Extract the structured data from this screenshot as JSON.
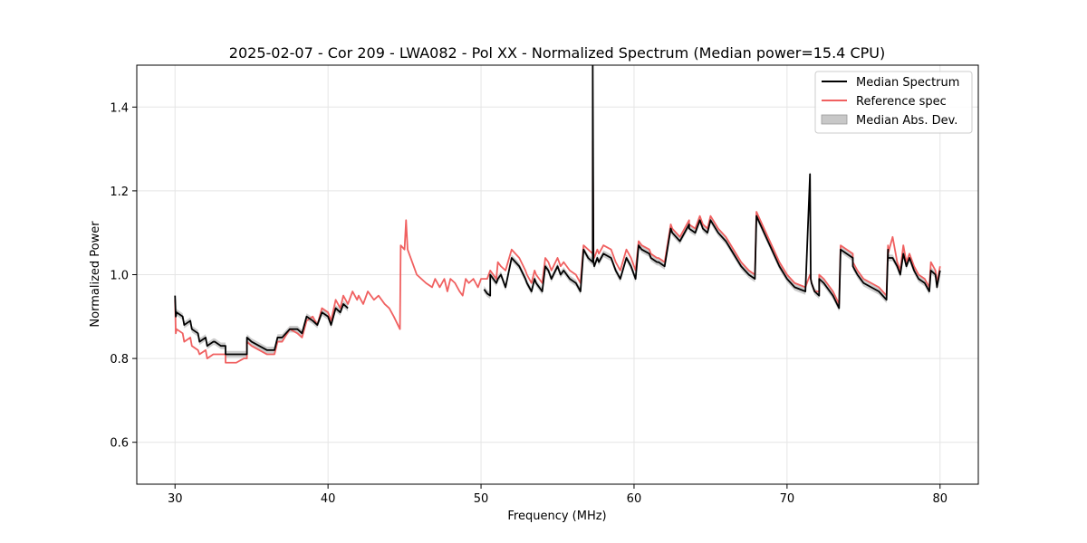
{
  "chart_data": {
    "type": "line",
    "title": "2025-02-07 - Cor 209 - LWA082 - Pol XX - Normalized Spectrum (Median power=15.4 CPU)",
    "xlabel": "Frequency (MHz)",
    "ylabel": "Normalized Power",
    "xlim": [
      27.5,
      82.5
    ],
    "ylim": [
      0.5,
      1.5
    ],
    "xticks": [
      30,
      40,
      50,
      60,
      70,
      80
    ],
    "yticks": [
      0.6,
      0.8,
      1.0,
      1.2,
      1.4
    ],
    "xtick_labels": [
      "30",
      "40",
      "50",
      "60",
      "70",
      "80"
    ],
    "ytick_labels": [
      "0.6",
      "0.8",
      "1.0",
      "1.2",
      "1.4"
    ],
    "grid": true,
    "legend_position": "top-right",
    "colors": {
      "median": "#000000",
      "reference": "#f06060",
      "mad": "#c8c8c8"
    },
    "legend": [
      {
        "label": "Median Spectrum",
        "style": "line",
        "color": "#000000"
      },
      {
        "label": "Reference spec",
        "style": "line",
        "color": "#f06060"
      },
      {
        "label": "Median Abs. Dev.",
        "style": "patch",
        "color": "#c8c8c8"
      }
    ],
    "series": [
      {
        "name": "Median Spectrum",
        "mad": 0.008,
        "segments": [
          {
            "x": [
              30.0,
              30.05,
              30.1,
              30.5,
              30.6,
              31.0,
              31.1,
              31.5,
              31.6,
              32.0,
              32.1,
              32.5,
              32.6,
              33.0,
              33.3,
              33.3,
              33.6,
              34.0,
              34.5,
              34.7,
              34.7,
              35.0,
              35.5,
              36.0,
              36.5,
              36.7,
              37.0,
              37.5,
              38.0,
              38.3,
              38.6,
              39.0,
              39.3,
              39.6,
              40.0,
              40.2,
              40.5,
              40.8,
              41.0,
              41.3
            ],
            "y": [
              0.95,
              0.9,
              0.91,
              0.9,
              0.88,
              0.89,
              0.87,
              0.86,
              0.84,
              0.85,
              0.83,
              0.84,
              0.84,
              0.83,
              0.83,
              0.81,
              0.81,
              0.81,
              0.81,
              0.81,
              0.85,
              0.84,
              0.83,
              0.82,
              0.82,
              0.85,
              0.85,
              0.87,
              0.87,
              0.86,
              0.9,
              0.89,
              0.88,
              0.91,
              0.9,
              0.88,
              0.92,
              0.91,
              0.93,
              0.92
            ]
          },
          {
            "x": [
              50.2,
              50.4,
              50.4,
              50.6,
              50.6,
              51.0,
              51.1,
              51.3,
              51.6,
              52.0,
              52.5,
              52.9,
              53.0,
              53.3,
              53.5,
              53.6,
              54.0,
              54.2,
              54.4,
              54.6,
              55.0,
              55.2,
              55.4,
              55.8,
              56.2,
              56.5,
              56.7,
              57.0,
              57.3,
              57.3,
              57.35,
              57.4,
              57.6,
              57.7,
              58.0,
              58.5,
              58.8,
              59.1,
              59.5,
              59.8,
              60.1,
              60.3,
              60.5,
              61.0,
              61.1,
              61.5,
              61.6,
              62.0,
              62.4,
              62.5,
              63.0,
              63.6,
              63.6,
              64.0,
              64.3,
              64.5,
              64.8,
              65.0,
              65.5,
              66.0,
              66.5,
              67.0,
              67.5,
              67.9,
              68.0,
              68.5,
              69.0,
              69.5,
              70.0,
              70.5,
              71.2,
              71.5,
              71.55,
              71.6,
              71.7,
              71.8,
              72.1,
              72.1,
              72.4,
              72.8,
              73.0,
              73.4,
              73.5,
              74.3,
              74.3,
              74.6,
              75.0,
              75.5,
              76.0,
              76.5,
              76.6,
              76.6,
              76.9,
              77.2,
              77.4,
              77.6,
              77.8,
              78.0,
              78.3,
              78.6,
              79.0,
              79.3,
              79.4,
              79.7,
              79.8,
              80.0
            ],
            "y": [
              0.965,
              0.955,
              0.955,
              0.95,
              1.0,
              0.98,
              0.99,
              1.0,
              0.97,
              1.04,
              1.02,
              0.99,
              0.98,
              0.96,
              0.99,
              0.98,
              0.96,
              1.02,
              1.01,
              0.99,
              1.02,
              1.0,
              1.01,
              0.99,
              0.98,
              0.96,
              1.06,
              1.04,
              1.03,
              1.5,
              1.03,
              1.02,
              1.04,
              1.03,
              1.05,
              1.04,
              1.01,
              0.99,
              1.04,
              1.02,
              0.99,
              1.07,
              1.06,
              1.05,
              1.04,
              1.03,
              1.03,
              1.02,
              1.11,
              1.1,
              1.08,
              1.12,
              1.11,
              1.1,
              1.13,
              1.11,
              1.1,
              1.13,
              1.1,
              1.08,
              1.05,
              1.02,
              1.0,
              0.99,
              1.14,
              1.1,
              1.06,
              1.02,
              0.99,
              0.97,
              0.96,
              1.24,
              0.99,
              0.98,
              0.97,
              0.96,
              0.95,
              0.99,
              0.98,
              0.96,
              0.95,
              0.92,
              1.06,
              1.04,
              1.02,
              1.0,
              0.98,
              0.97,
              0.96,
              0.94,
              1.06,
              1.04,
              1.04,
              1.02,
              1.0,
              1.05,
              1.02,
              1.04,
              1.01,
              0.99,
              0.98,
              0.96,
              1.01,
              1.0,
              0.97,
              1.01
            ]
          }
        ]
      },
      {
        "name": "Reference spec",
        "segments": [
          {
            "x": [
              30.0,
              30.05,
              30.1,
              30.5,
              30.6,
              31.0,
              31.1,
              31.5,
              31.6,
              32.0,
              32.1,
              32.5,
              32.6,
              33.0,
              33.3,
              33.3,
              33.6,
              34.0,
              34.5,
              34.7,
              34.7,
              35.0,
              35.5,
              36.0,
              36.5,
              36.7,
              37.0,
              37.5,
              38.0,
              38.3,
              38.6,
              39.0,
              39.3,
              39.6,
              40.0,
              40.2,
              40.5,
              40.8,
              41.0,
              41.3,
              41.6,
              41.9,
              42.0,
              42.3,
              42.6,
              43.0,
              43.3,
              43.7,
              44.0,
              44.3,
              44.7,
              44.75,
              45.0,
              45.1,
              45.2,
              45.5,
              45.8,
              46.1,
              46.4,
              46.8,
              47.0,
              47.3,
              47.6,
              47.8,
              48.0,
              48.3,
              48.6,
              48.8,
              49.0,
              49.2,
              49.5,
              49.8,
              50.0,
              50.2,
              50.4,
              50.6,
              51.0,
              51.1,
              51.3,
              51.6,
              52.0,
              52.5,
              52.9,
              53.0,
              53.3,
              53.5,
              53.6,
              54.0,
              54.2,
              54.4,
              54.6,
              55.0,
              55.2,
              55.4,
              55.8,
              56.2,
              56.5,
              56.7,
              57.0,
              57.3,
              57.3,
              57.35,
              57.4,
              57.6,
              57.7,
              58.0,
              58.5,
              58.8,
              59.1,
              59.5,
              59.8,
              60.1,
              60.3,
              60.5,
              61.0,
              61.1,
              61.5,
              61.6,
              62.0,
              62.4,
              62.5,
              63.0,
              63.6,
              63.6,
              64.0,
              64.3,
              64.5,
              64.8,
              65.0,
              65.5,
              66.0,
              66.5,
              67.0,
              67.5,
              67.9,
              68.0,
              68.5,
              69.0,
              69.5,
              70.0,
              70.5,
              71.2,
              71.5,
              71.55,
              71.6,
              71.7,
              71.8,
              72.1,
              72.1,
              72.4,
              72.8,
              73.0,
              73.4,
              73.5,
              74.3,
              74.3,
              74.6,
              75.0,
              75.5,
              76.0,
              76.5,
              76.6,
              76.6,
              76.9,
              77.2,
              77.4,
              77.6,
              77.8,
              78.0,
              78.3,
              78.6,
              79.0,
              79.3,
              79.4,
              79.7,
              79.8,
              80.0
            ],
            "y": [
              0.94,
              0.86,
              0.87,
              0.86,
              0.84,
              0.85,
              0.83,
              0.82,
              0.81,
              0.82,
              0.8,
              0.81,
              0.81,
              0.81,
              0.81,
              0.79,
              0.79,
              0.79,
              0.8,
              0.8,
              0.84,
              0.83,
              0.82,
              0.81,
              0.81,
              0.84,
              0.84,
              0.87,
              0.86,
              0.85,
              0.89,
              0.9,
              0.88,
              0.92,
              0.91,
              0.89,
              0.94,
              0.92,
              0.95,
              0.93,
              0.96,
              0.94,
              0.95,
              0.93,
              0.96,
              0.94,
              0.95,
              0.93,
              0.92,
              0.9,
              0.87,
              1.07,
              1.06,
              1.13,
              1.06,
              1.03,
              1.0,
              0.99,
              0.98,
              0.97,
              0.99,
              0.97,
              0.99,
              0.96,
              0.99,
              0.98,
              0.96,
              0.95,
              0.99,
              0.98,
              0.99,
              0.97,
              0.99,
              0.99,
              0.99,
              1.01,
              0.99,
              1.03,
              1.02,
              1.01,
              1.06,
              1.04,
              1.01,
              1.0,
              0.98,
              1.01,
              1.0,
              0.98,
              1.04,
              1.03,
              1.01,
              1.04,
              1.02,
              1.03,
              1.01,
              1.0,
              0.98,
              1.07,
              1.06,
              1.05,
              1.32,
              1.05,
              1.04,
              1.06,
              1.05,
              1.07,
              1.06,
              1.03,
              1.01,
              1.06,
              1.04,
              1.01,
              1.08,
              1.07,
              1.06,
              1.05,
              1.04,
              1.04,
              1.03,
              1.12,
              1.11,
              1.09,
              1.13,
              1.12,
              1.11,
              1.14,
              1.12,
              1.11,
              1.14,
              1.11,
              1.09,
              1.06,
              1.03,
              1.01,
              1.0,
              1.15,
              1.11,
              1.07,
              1.03,
              1.0,
              0.98,
              0.97,
              1.0,
              0.99,
              0.98,
              0.97,
              0.96,
              0.96,
              1.0,
              0.99,
              0.97,
              0.96,
              0.93,
              1.07,
              1.05,
              1.03,
              1.01,
              0.99,
              0.98,
              0.97,
              0.95,
              1.07,
              1.05,
              1.09,
              1.03,
              1.01,
              1.07,
              1.03,
              1.05,
              1.02,
              1.0,
              0.99,
              0.97,
              1.03,
              1.01,
              0.98,
              1.02
            ]
          }
        ]
      }
    ]
  }
}
